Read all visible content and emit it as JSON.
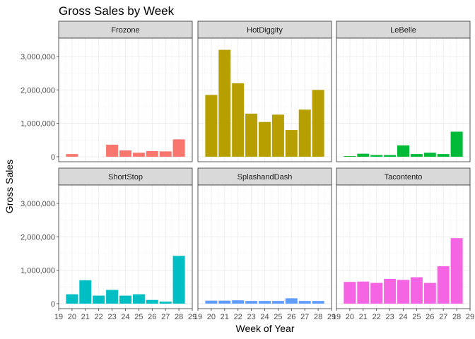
{
  "chart_data": {
    "type": "bar",
    "title": "Gross Sales by Week",
    "xlabel": "Week of Year",
    "ylabel": "Gross Sales",
    "xlim": [
      19,
      29
    ],
    "ylim": [
      -150000,
      3550000
    ],
    "x_ticks": [
      19,
      20,
      21,
      22,
      23,
      24,
      25,
      26,
      27,
      28,
      29
    ],
    "y_ticks": [
      0,
      1000000,
      2000000,
      3000000
    ],
    "y_tick_labels": [
      "0",
      "1,000,000",
      "2,000,000",
      "3,000,000"
    ],
    "grid": true,
    "legend": "none",
    "facet_layout": "2 rows x 3 columns, shared axes",
    "facets": [
      {
        "name": "Frozone",
        "color": "#F8766D",
        "x": [
          20,
          21,
          22,
          23,
          24,
          25,
          26,
          27,
          28
        ],
        "values": [
          80000,
          0,
          0,
          360000,
          190000,
          120000,
          170000,
          160000,
          520000
        ]
      },
      {
        "name": "HotDiggity",
        "color": "#B79F00",
        "x": [
          20,
          21,
          22,
          23,
          24,
          25,
          26,
          27,
          28
        ],
        "values": [
          1850000,
          3200000,
          2200000,
          1290000,
          1040000,
          1260000,
          800000,
          1410000,
          2000000
        ]
      },
      {
        "name": "LeBelle",
        "color": "#00BA38",
        "x": [
          20,
          21,
          22,
          23,
          24,
          25,
          26,
          27,
          28
        ],
        "values": [
          20000,
          90000,
          50000,
          50000,
          340000,
          80000,
          120000,
          80000,
          750000
        ]
      },
      {
        "name": "ShortStop",
        "color": "#00BFC4",
        "x": [
          20,
          21,
          22,
          23,
          24,
          25,
          26,
          27,
          28
        ],
        "values": [
          280000,
          700000,
          240000,
          410000,
          240000,
          280000,
          110000,
          60000,
          1430000
        ]
      },
      {
        "name": "SplashandDash",
        "color": "#619CFF",
        "x": [
          20,
          21,
          22,
          23,
          24,
          25,
          26,
          27,
          28
        ],
        "values": [
          90000,
          90000,
          100000,
          80000,
          80000,
          80000,
          160000,
          80000,
          80000
        ]
      },
      {
        "name": "Tacontento",
        "color": "#F564E3",
        "x": [
          20,
          21,
          22,
          23,
          24,
          25,
          26,
          27,
          28
        ],
        "values": [
          650000,
          660000,
          620000,
          740000,
          710000,
          790000,
          620000,
          1120000,
          1960000
        ]
      }
    ]
  }
}
